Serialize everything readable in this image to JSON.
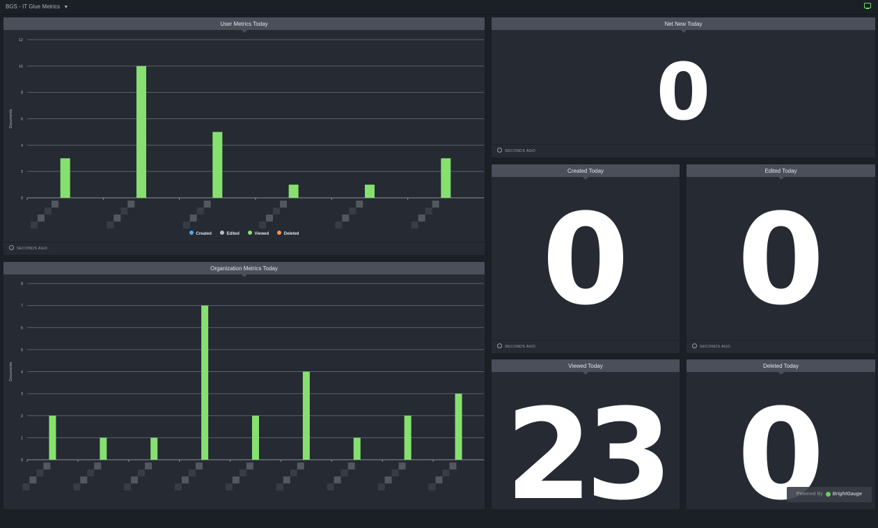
{
  "app": {
    "title": "BGS - IT Glue Metrics"
  },
  "user_metrics": {
    "title": "User Metrics Today",
    "footer": "SECONDS AGO",
    "legend": [
      {
        "label": "Created",
        "color": "#5ba6e8"
      },
      {
        "label": "Edited",
        "color": "#b7bcc4"
      },
      {
        "label": "Viewed",
        "color": "#86e06f"
      },
      {
        "label": "Deleted",
        "color": "#f0955a"
      }
    ]
  },
  "org_metrics": {
    "title": "Organization Metrics Today"
  },
  "net_new": {
    "title": "Net New Today",
    "value": "0",
    "footer": "SECONDS AGO"
  },
  "created": {
    "title": "Created Today",
    "value": "0",
    "footer": "SECONDS AGO"
  },
  "edited": {
    "title": "Edited Today",
    "value": "0",
    "footer": "SECONDS AGO"
  },
  "viewed": {
    "title": "Viewed Today",
    "value": "23"
  },
  "deleted": {
    "title": "Deleted Today",
    "value": "0"
  },
  "badge": {
    "prefix": "Powered By",
    "brand": "BrightGauge"
  },
  "chart_data": [
    {
      "type": "bar",
      "title": "User Metrics Today",
      "ylabel": "Documents",
      "ylim": [
        0,
        12
      ],
      "yticks": [
        0,
        2,
        4,
        6,
        8,
        10,
        12
      ],
      "grid": true,
      "legend": "bottom",
      "categories": [
        "",
        "",
        "",
        "",
        "",
        ""
      ],
      "series": [
        {
          "name": "Viewed",
          "color": "#86e06f",
          "values": [
            3,
            10,
            5,
            1,
            1,
            3
          ]
        }
      ]
    },
    {
      "type": "bar",
      "title": "Organization Metrics Today",
      "ylabel": "Documents",
      "ylim": [
        0,
        8
      ],
      "yticks": [
        0,
        1,
        2,
        3,
        4,
        5,
        6,
        7,
        8
      ],
      "grid": true,
      "categories": [
        "",
        "",
        "",
        "",
        "",
        "",
        "",
        "",
        ""
      ],
      "series": [
        {
          "color": "#86e06f",
          "values": [
            2,
            1,
            1,
            7,
            2,
            4,
            1,
            2,
            3
          ]
        }
      ]
    }
  ]
}
